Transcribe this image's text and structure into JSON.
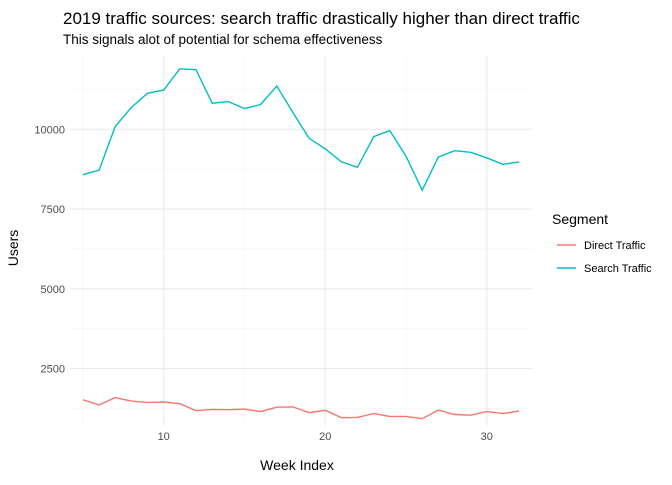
{
  "chart_data": {
    "type": "line",
    "title": "2019 traffic sources: search traffic drastically higher than direct traffic",
    "subtitle": "This signals alot of potential for schema effectiveness",
    "xlabel": "Week Index",
    "ylabel": "Users",
    "xlim": [
      4.2,
      32.8
    ],
    "ylim": [
      700,
      12300
    ],
    "x_ticks": [
      10,
      20,
      30
    ],
    "y_ticks": [
      2500,
      5000,
      7500,
      10000
    ],
    "x_tick_labels": [
      "10",
      "20",
      "30"
    ],
    "y_tick_labels": [
      "2500",
      "5000",
      "7500",
      "10000"
    ],
    "grid": true,
    "legend": {
      "title": "Segment",
      "position": "right"
    },
    "x": [
      5,
      6,
      7,
      8,
      9,
      10,
      11,
      12,
      13,
      14,
      15,
      16,
      17,
      18,
      19,
      20,
      21,
      22,
      23,
      24,
      25,
      26,
      27,
      28,
      29,
      30,
      31,
      32
    ],
    "series": [
      {
        "name": "Direct Traffic",
        "color": "#F8766D",
        "values": [
          1520,
          1360,
          1590,
          1480,
          1440,
          1450,
          1400,
          1180,
          1220,
          1210,
          1230,
          1150,
          1290,
          1300,
          1120,
          1190,
          960,
          970,
          1090,
          1000,
          1000,
          930,
          1200,
          1060,
          1040,
          1150,
          1090,
          1170
        ]
      },
      {
        "name": "Search Traffic",
        "color": "#00BFC4",
        "values": [
          8580,
          8720,
          10090,
          10690,
          11130,
          11230,
          11900,
          11870,
          10820,
          10870,
          10650,
          10780,
          11360,
          10530,
          9720,
          9390,
          8980,
          8810,
          9770,
          9960,
          9160,
          8090,
          9130,
          9330,
          9280,
          9110,
          8900,
          8980
        ]
      }
    ]
  }
}
